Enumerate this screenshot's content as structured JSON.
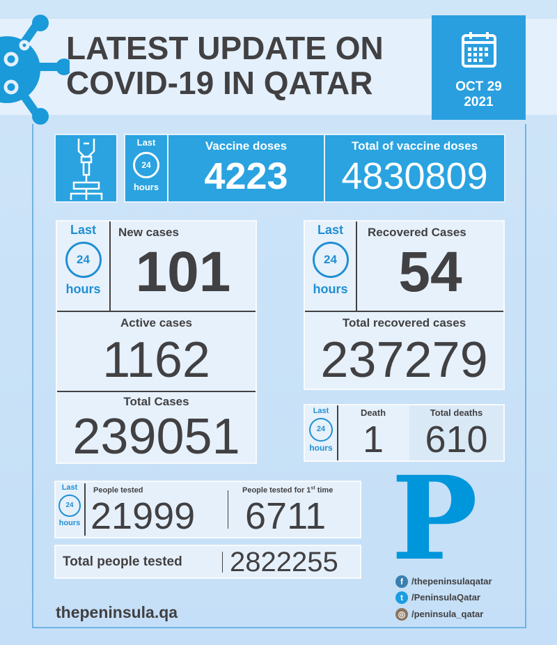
{
  "header": {
    "title_line1": "LATEST UPDATE ON",
    "title_line2": "COVID-19 IN QATAR",
    "date_line1": "OCT 29",
    "date_line2": "2021"
  },
  "period": {
    "last": "Last",
    "num": "24",
    "hours": "hours"
  },
  "vaccine": {
    "doses_label": "Vaccine doses",
    "doses_value": "4223",
    "total_label": "Total of vaccine doses",
    "total_value": "4830809"
  },
  "cases": {
    "new_label": "New cases",
    "new_value": "101",
    "active_label": "Active cases",
    "active_value": "1162",
    "total_label": "Total Cases",
    "total_value": "239051"
  },
  "recovered": {
    "label": "Recovered Cases",
    "value": "54",
    "total_label": "Total recovered cases",
    "total_value": "237279"
  },
  "deaths": {
    "label": "Death",
    "value": "1",
    "total_label": "Total deaths",
    "total_value": "610"
  },
  "tests": {
    "people_label": "People tested",
    "people_value": "21999",
    "first_label": "People tested for 1",
    "first_sup": "st",
    "first_suffix": " time",
    "first_value": "6711",
    "total_label": "Total people tested",
    "total_value": "2822255"
  },
  "footer": {
    "site": "thepeninsula.qa",
    "logo": "P",
    "facebook": "/thepeninsulaqatar",
    "twitter": "/PeninsulaQatar",
    "instagram": "/peninsula_qatar"
  },
  "colors": {
    "accent": "#2aa3e0",
    "text": "#414042",
    "logo": "#0096db"
  }
}
